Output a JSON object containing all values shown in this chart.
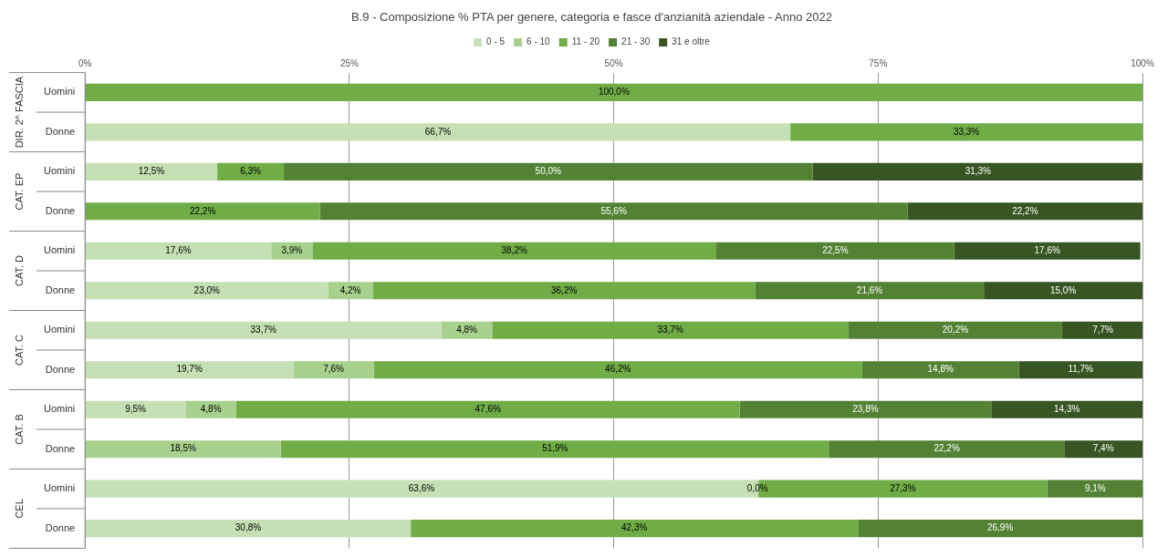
{
  "chart_data": {
    "type": "bar",
    "orientation": "horizontal",
    "stacked": true,
    "title": "B.9 - Composizione % PTA per genere, categoria e fasce d'anzianità aziendale - Anno 2022",
    "categories": [
      "Uomini",
      "Donne",
      "Uomini",
      "Donne",
      "Uomini",
      "Donne",
      "Uomini",
      "Donne",
      "Uomini",
      "Donne",
      "Uomini",
      "Donne"
    ],
    "annotations": [
      "DIR. 2^ FASCIA",
      "CAT. EP",
      "CAT. D",
      "CAT. C",
      "CAT. B",
      "CEL"
    ],
    "series": [
      {
        "name": "0 - 5",
        "color": "#c5e0b4",
        "values": [
          null,
          66.7,
          12.5,
          null,
          17.6,
          23.0,
          33.7,
          19.7,
          9.5,
          null,
          63.6,
          30.8
        ],
        "value_labels": [
          null,
          "66,7%",
          "12,5%",
          null,
          "17,6%",
          "23,0%",
          "33,7%",
          "19,7%",
          "9,5%",
          null,
          "63,6%",
          "30,8%"
        ]
      },
      {
        "name": "6 - 10",
        "color": "#a9d18e",
        "values": [
          null,
          null,
          null,
          null,
          3.9,
          4.2,
          4.8,
          7.6,
          4.8,
          18.5,
          0.0,
          null
        ],
        "value_labels": [
          null,
          null,
          null,
          null,
          "3,9%",
          "4,2%",
          "4,8%",
          "7,6%",
          "4,8%",
          "18,5%",
          "0,0%",
          null
        ]
      },
      {
        "name": "11 - 20",
        "color": "#70ad47",
        "values": [
          100.0,
          33.3,
          6.3,
          22.2,
          38.2,
          36.2,
          33.7,
          46.2,
          47.6,
          51.9,
          27.3,
          42.3
        ],
        "value_labels": [
          "100,0%",
          "33,3%",
          "6,3%",
          "22,2%",
          "38,2%",
          "36,2%",
          "33,7%",
          "46,2%",
          "47,6%",
          "51,9%",
          "27,3%",
          "42,3%"
        ]
      },
      {
        "name": "21 - 30",
        "color": "#548235",
        "values": [
          null,
          null,
          50.0,
          55.6,
          22.5,
          21.6,
          20.2,
          14.8,
          23.8,
          22.2,
          9.1,
          26.9
        ],
        "value_labels": [
          null,
          null,
          "50,0%",
          "55,6%",
          "22,5%",
          "21,6%",
          "20,2%",
          "14,8%",
          "23,8%",
          "22,2%",
          "9,1%",
          "26,9%"
        ]
      },
      {
        "name": "31 e oltre",
        "color": "#375623",
        "values": [
          null,
          null,
          31.3,
          22.2,
          17.6,
          15.0,
          7.7,
          11.7,
          14.3,
          7.4,
          null,
          null
        ],
        "value_labels": [
          null,
          null,
          "31,3%",
          "22,2%",
          "17,6%",
          "15,0%",
          "7,7%",
          "11,7%",
          "14,3%",
          "7,4%",
          null,
          null
        ]
      }
    ],
    "xlim": [
      0,
      100
    ],
    "xticks": [
      {
        "value": 0,
        "label": "0%"
      },
      {
        "value": 25,
        "label": "25%"
      },
      {
        "value": 50,
        "label": "50%"
      },
      {
        "value": 75,
        "label": "75%"
      },
      {
        "value": 100,
        "label": "100%"
      }
    ],
    "grid": "x",
    "legend": "top"
  }
}
